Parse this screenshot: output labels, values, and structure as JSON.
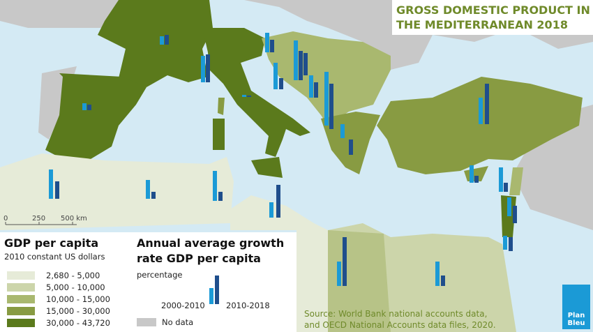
{
  "title": {
    "line1": "GROSS DOMESTIC PRODUCT IN",
    "line2": "THE MEDITERRANEAN 2018"
  },
  "scale_bar": {
    "labels": [
      "0",
      "250",
      "500 km"
    ]
  },
  "legend_gdp": {
    "title": "GDP per capita",
    "subtitle": "2010 constant US dollars",
    "items": [
      {
        "label": "2,680 -  5,000",
        "color": "#e6ebd8"
      },
      {
        "label": "5,000 - 10,000",
        "color": "#ccd5aa"
      },
      {
        "label": "10,000 - 15,000",
        "color": "#a9b86f"
      },
      {
        "label": "15,000 - 30,000",
        "color": "#889b42"
      },
      {
        "label": "30,000 - 43,720",
        "color": "#5b7a1c"
      }
    ],
    "no_data": {
      "label": "No data",
      "color": "#c8c8c8"
    }
  },
  "legend_growth": {
    "title_line1": "Annual average growth",
    "title_line2": "rate GDP per capita",
    "subtitle": "percentage",
    "period1": "2000-2010",
    "period2": "2010-2018"
  },
  "source": {
    "line1": "Source: World Bank national accounts data,",
    "line2": "and OECD National Accounts data files, 2020."
  },
  "logo": {
    "line1": "Plan",
    "line2": "Bleu"
  }
}
